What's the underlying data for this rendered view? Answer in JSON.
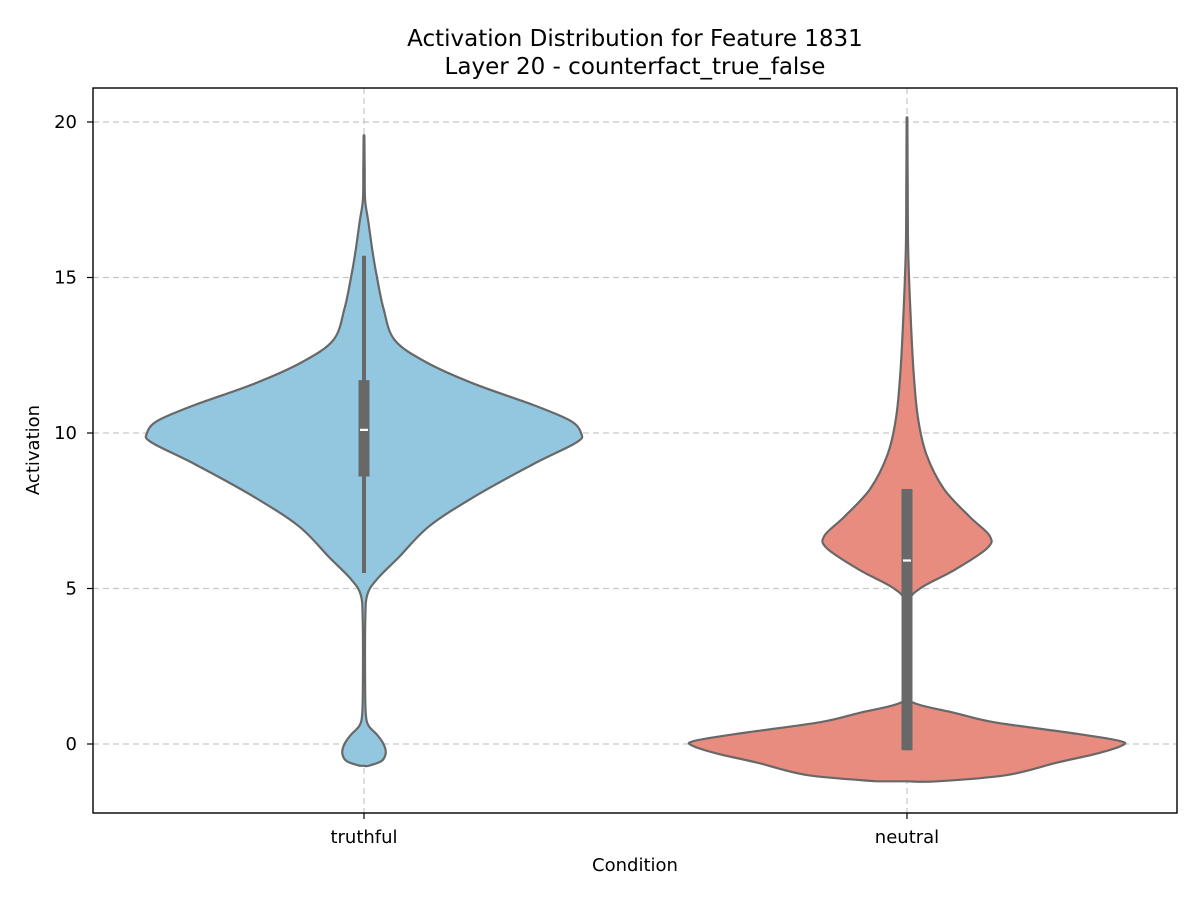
{
  "chart_data": {
    "type": "violin",
    "title_line1": "Activation Distribution for Feature 1831",
    "title_line2": "Layer 20 - counterfact_true_false",
    "xlabel": "Condition",
    "ylabel": "Activation",
    "categories": [
      "truthful",
      "neutral"
    ],
    "ylim": [
      -2.2,
      21.1
    ],
    "yticks": [
      0,
      5,
      10,
      15,
      20
    ],
    "grid": true,
    "colors": {
      "truthful": "#92c7df",
      "neutral": "#e88c80",
      "outline": "#686868"
    },
    "violins": [
      {
        "category": "truthful",
        "whisker": [
          5.5,
          15.7
        ],
        "quartiles": [
          8.6,
          10.1,
          11.7
        ],
        "profile": [
          [
            -0.7,
            0.02
          ],
          [
            -0.55,
            0.08
          ],
          [
            -0.3,
            0.1
          ],
          [
            0.0,
            0.09
          ],
          [
            0.3,
            0.06
          ],
          [
            0.6,
            0.02
          ],
          [
            1.0,
            0.008
          ],
          [
            2.0,
            0.005
          ],
          [
            4.0,
            0.006
          ],
          [
            4.8,
            0.015
          ],
          [
            5.3,
            0.06
          ],
          [
            6.0,
            0.16
          ],
          [
            7.0,
            0.3
          ],
          [
            8.0,
            0.52
          ],
          [
            9.0,
            0.78
          ],
          [
            9.7,
            0.98
          ],
          [
            10.0,
            1.0
          ],
          [
            10.4,
            0.95
          ],
          [
            10.9,
            0.78
          ],
          [
            11.6,
            0.5
          ],
          [
            12.3,
            0.28
          ],
          [
            13.0,
            0.14
          ],
          [
            14.0,
            0.09
          ],
          [
            15.0,
            0.06
          ],
          [
            15.8,
            0.04
          ],
          [
            16.8,
            0.02
          ],
          [
            17.5,
            0.005
          ],
          [
            18.5,
            0.003
          ],
          [
            19.5,
            0.002
          ]
        ]
      },
      {
        "category": "neutral",
        "whisker": [
          -0.2,
          8.2
        ],
        "quartiles": [
          -0.2,
          5.9,
          8.2
        ],
        "profile": [
          [
            -1.2,
            0.14
          ],
          [
            -1.0,
            0.46
          ],
          [
            -0.6,
            0.69
          ],
          [
            -0.3,
            0.88
          ],
          [
            -0.05,
            0.99
          ],
          [
            0.1,
            0.98
          ],
          [
            0.35,
            0.76
          ],
          [
            0.7,
            0.4
          ],
          [
            1.0,
            0.22
          ],
          [
            1.3,
            0.04
          ],
          [
            1.6,
            0.01
          ],
          [
            3.0,
            0.01
          ],
          [
            4.5,
            0.01
          ],
          [
            5.0,
            0.06
          ],
          [
            5.6,
            0.22
          ],
          [
            6.3,
            0.37
          ],
          [
            6.7,
            0.38
          ],
          [
            7.3,
            0.29
          ],
          [
            8.2,
            0.17
          ],
          [
            9.3,
            0.09
          ],
          [
            10.5,
            0.05
          ],
          [
            12.0,
            0.03
          ],
          [
            14.0,
            0.015
          ],
          [
            16.0,
            0.005
          ],
          [
            18.0,
            0.003
          ],
          [
            20.0,
            0.002
          ]
        ]
      }
    ]
  }
}
